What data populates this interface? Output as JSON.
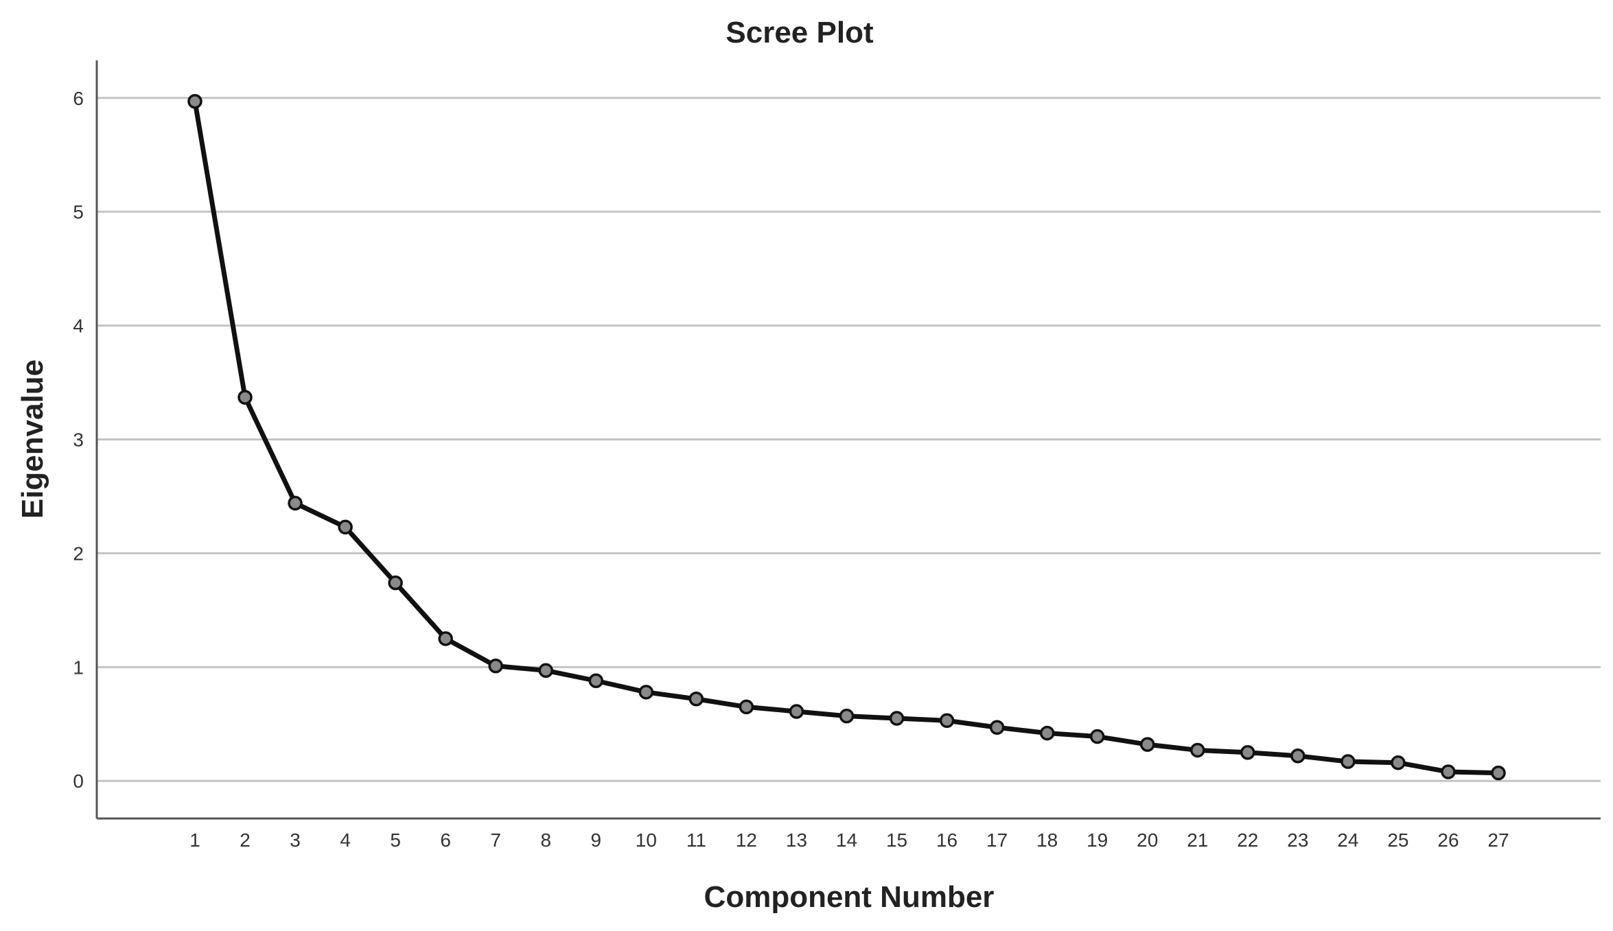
{
  "chart_data": {
    "type": "line",
    "title": "Scree Plot",
    "xlabel": "Component Number",
    "ylabel": "Eigenvalue",
    "x": [
      1,
      2,
      3,
      4,
      5,
      6,
      7,
      8,
      9,
      10,
      11,
      12,
      13,
      14,
      15,
      16,
      17,
      18,
      19,
      20,
      21,
      22,
      23,
      24,
      25,
      26,
      27
    ],
    "series": [
      {
        "values": [
          5.97,
          3.37,
          2.44,
          2.23,
          1.74,
          1.25,
          1.01,
          0.97,
          0.88,
          0.78,
          0.72,
          0.65,
          0.61,
          0.57,
          0.55,
          0.53,
          0.47,
          0.42,
          0.39,
          0.32,
          0.27,
          0.25,
          0.22,
          0.17,
          0.16,
          0.08,
          0.07
        ]
      }
    ],
    "yticks": [
      "0",
      "1",
      "2",
      "3",
      "4",
      "5",
      "6"
    ],
    "ylim": [
      -0.33,
      6.33
    ],
    "grid": true,
    "line_color": "#111111",
    "marker_color": "#8a8a8a"
  }
}
